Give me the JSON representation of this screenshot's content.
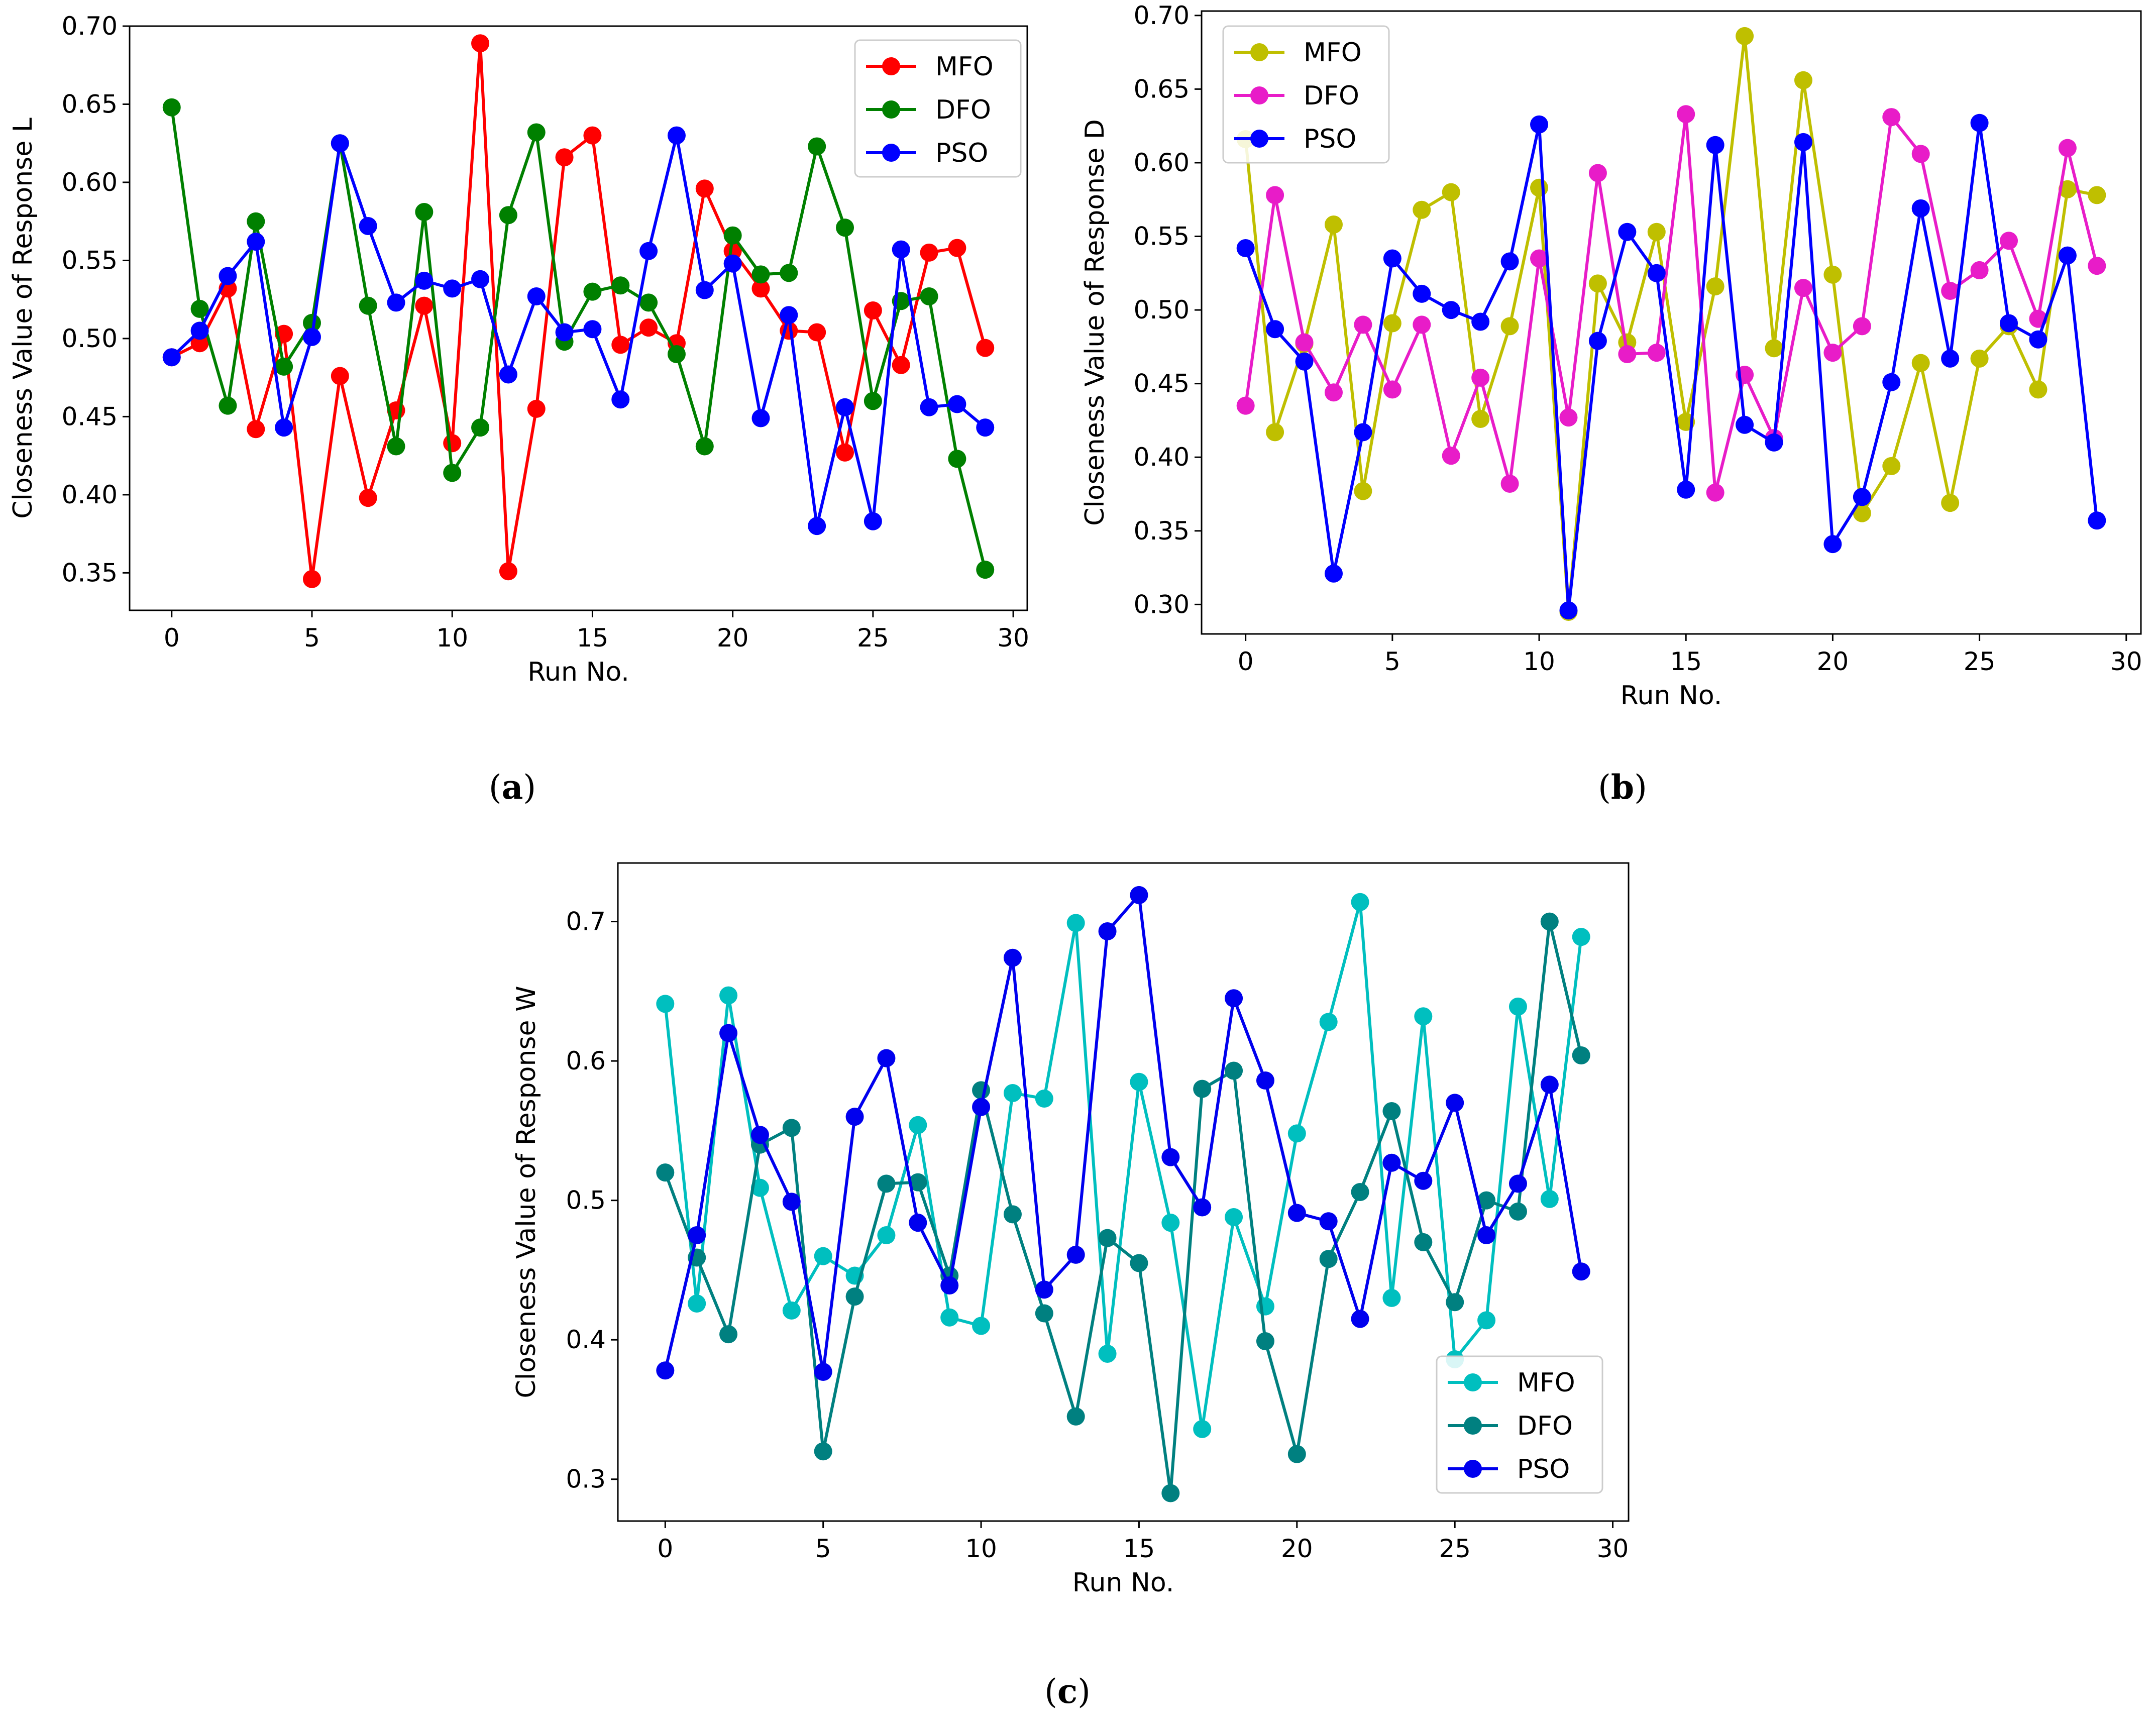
{
  "chart_data": [
    {
      "type": "line",
      "caption": "a",
      "xlabel": "Run No.",
      "ylabel": "Closeness Value of Response L",
      "xlim": [
        -1.5,
        30.5
      ],
      "ylim": [
        0.326,
        0.7
      ],
      "xticks": [
        "0",
        "5",
        "10",
        "15",
        "20",
        "25",
        "30"
      ],
      "yticks": [
        "0.35",
        "0.40",
        "0.45",
        "0.50",
        "0.55",
        "0.60",
        "0.65",
        "0.70"
      ],
      "legend_position": "top-right",
      "x": [
        0,
        1,
        2,
        3,
        4,
        5,
        6,
        7,
        8,
        9,
        10,
        11,
        12,
        13,
        14,
        15,
        16,
        17,
        18,
        19,
        20,
        21,
        22,
        23,
        24,
        25,
        26,
        27,
        28,
        29
      ],
      "series": [
        {
          "name": "MFO",
          "color": "#ff0000",
          "values": [
            0.488,
            0.497,
            0.532,
            0.442,
            0.503,
            0.346,
            0.476,
            0.398,
            0.454,
            0.521,
            0.433,
            0.689,
            0.351,
            0.455,
            0.616,
            0.63,
            0.496,
            0.507,
            0.497,
            0.596,
            0.556,
            0.532,
            0.505,
            0.504,
            0.427,
            0.518,
            0.483,
            0.555,
            0.558,
            0.494
          ]
        },
        {
          "name": "DFO",
          "color": "#008000",
          "values": [
            0.648,
            0.519,
            0.457,
            0.575,
            0.482,
            0.51,
            0.625,
            0.521,
            0.431,
            0.581,
            0.414,
            0.443,
            0.579,
            0.632,
            0.498,
            0.53,
            0.534,
            0.523,
            0.49,
            0.431,
            0.566,
            0.541,
            0.542,
            0.623,
            0.571,
            0.46,
            0.524,
            0.527,
            0.423,
            0.352
          ]
        },
        {
          "name": "PSO",
          "color": "#0000ff",
          "values": [
            0.488,
            0.505,
            0.54,
            0.562,
            0.443,
            0.501,
            0.625,
            0.572,
            0.523,
            0.537,
            0.532,
            0.538,
            0.477,
            0.527,
            0.504,
            0.506,
            0.461,
            0.556,
            0.63,
            0.531,
            0.548,
            0.449,
            0.515,
            0.38,
            0.456,
            0.383,
            0.557,
            0.456,
            0.458,
            0.443
          ]
        }
      ]
    },
    {
      "type": "line",
      "caption": "b",
      "xlabel": "Run No.",
      "ylabel": "Closeness Value of Response D",
      "xlim": [
        -1.5,
        30.5
      ],
      "ylim": [
        0.28,
        0.703
      ],
      "xticks": [
        "0",
        "5",
        "10",
        "15",
        "20",
        "25",
        "30"
      ],
      "yticks": [
        "0.30",
        "0.35",
        "0.40",
        "0.45",
        "0.50",
        "0.55",
        "0.60",
        "0.65",
        "0.70"
      ],
      "legend_position": "top-left",
      "x": [
        0,
        1,
        2,
        3,
        4,
        5,
        6,
        7,
        8,
        9,
        10,
        11,
        12,
        13,
        14,
        15,
        16,
        17,
        18,
        19,
        20,
        21,
        22,
        23,
        24,
        25,
        26,
        27,
        28,
        29
      ],
      "series": [
        {
          "name": "MFO",
          "color": "#bfbf00",
          "values": [
            0.616,
            0.417,
            0.477,
            0.558,
            0.377,
            0.491,
            0.568,
            0.58,
            0.426,
            0.489,
            0.583,
            0.295,
            0.518,
            0.478,
            0.553,
            0.424,
            0.516,
            0.686,
            0.474,
            0.656,
            0.524,
            0.362,
            0.394,
            0.464,
            0.369,
            0.467,
            0.489,
            0.446,
            0.582,
            0.578
          ]
        },
        {
          "name": "DFO",
          "color": "#e81cc8",
          "values": [
            0.435,
            0.578,
            0.478,
            0.444,
            0.49,
            0.446,
            0.49,
            0.401,
            0.454,
            0.382,
            0.535,
            0.427,
            0.593,
            0.47,
            0.471,
            0.633,
            0.376,
            0.456,
            0.413,
            0.515,
            0.471,
            0.489,
            0.631,
            0.606,
            0.513,
            0.527,
            0.547,
            0.494,
            0.61,
            0.53
          ]
        },
        {
          "name": "PSO",
          "color": "#0000ff",
          "values": [
            0.542,
            0.487,
            0.465,
            0.321,
            0.417,
            0.535,
            0.511,
            0.5,
            0.492,
            0.533,
            0.626,
            0.296,
            0.479,
            0.553,
            0.525,
            0.378,
            0.612,
            0.422,
            0.41,
            0.614,
            0.341,
            0.373,
            0.451,
            0.569,
            0.467,
            0.627,
            0.491,
            0.48,
            0.537,
            0.357
          ]
        }
      ]
    },
    {
      "type": "line",
      "caption": "c",
      "xlabel": "Run No.",
      "ylabel": "Closeness Value of Response W",
      "xlim": [
        -1.5,
        30.5
      ],
      "ylim": [
        0.27,
        0.742
      ],
      "xticks": [
        "0",
        "5",
        "10",
        "15",
        "20",
        "25",
        "30"
      ],
      "yticks": [
        "0.3",
        "0.4",
        "0.5",
        "0.6",
        "0.7"
      ],
      "legend_position": "bottom-right",
      "x": [
        0,
        1,
        2,
        3,
        4,
        5,
        6,
        7,
        8,
        9,
        10,
        11,
        12,
        13,
        14,
        15,
        16,
        17,
        18,
        19,
        20,
        21,
        22,
        23,
        24,
        25,
        26,
        27,
        28,
        29
      ],
      "series": [
        {
          "name": "MFO",
          "color": "#00bfbf",
          "values": [
            0.641,
            0.426,
            0.647,
            0.509,
            0.421,
            0.46,
            0.446,
            0.475,
            0.554,
            0.416,
            0.41,
            0.577,
            0.573,
            0.699,
            0.39,
            0.585,
            0.484,
            0.336,
            0.488,
            0.424,
            0.548,
            0.628,
            0.714,
            0.43,
            0.632,
            0.386,
            0.414,
            0.639,
            0.501,
            0.689
          ]
        },
        {
          "name": "DFO",
          "color": "#008080",
          "values": [
            0.52,
            0.459,
            0.404,
            0.54,
            0.552,
            0.32,
            0.431,
            0.512,
            0.513,
            0.446,
            0.579,
            0.49,
            0.419,
            0.345,
            0.473,
            0.455,
            0.29,
            0.58,
            0.593,
            0.399,
            0.318,
            0.458,
            0.506,
            0.564,
            0.47,
            0.427,
            0.5,
            0.492,
            0.7,
            0.604
          ]
        },
        {
          "name": "PSO",
          "color": "#0000ee",
          "values": [
            0.378,
            0.475,
            0.62,
            0.547,
            0.499,
            0.377,
            0.56,
            0.602,
            0.484,
            0.439,
            0.567,
            0.674,
            0.436,
            0.461,
            0.693,
            0.719,
            0.531,
            0.495,
            0.645,
            0.586,
            0.491,
            0.485,
            0.415,
            0.527,
            0.514,
            0.57,
            0.475,
            0.512,
            0.583,
            0.449
          ]
        }
      ]
    }
  ]
}
